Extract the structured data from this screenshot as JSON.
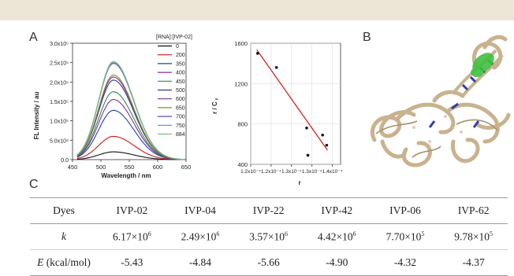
{
  "panels": {
    "a": "A",
    "b": "B",
    "c": "C"
  },
  "chart_data": [
    {
      "type": "line",
      "xlabel": "Wavelength / nm",
      "ylabel": "FL Intensity / au",
      "xlim": [
        450,
        650
      ],
      "ylim": [
        0,
        300000
      ],
      "x_ticks": [
        "450",
        "500",
        "550",
        "600",
        "650"
      ],
      "y_ticks": [
        "0.0",
        "5.0x10⁴",
        "1.0x10⁵",
        "1.5x10⁵",
        "2.0x10⁵",
        "2.5x10⁵",
        "3.0x10⁵"
      ],
      "legend_title": "[RNA]:[IVP-02]",
      "legend_position": "right",
      "peak_wavelength": 522,
      "series": [
        {
          "name": "0",
          "color": "#111111",
          "peak": 20000
        },
        {
          "name": "200",
          "color": "#d01717",
          "peak": 60000
        },
        {
          "name": "350",
          "color": "#1f3fb8",
          "peak": 127000
        },
        {
          "name": "400",
          "color": "#8a2f8a",
          "peak": 155000
        },
        {
          "name": "450",
          "color": "#2e8b57",
          "peak": 175000
        },
        {
          "name": "500",
          "color": "#2b3a8f",
          "peak": 205000
        },
        {
          "name": "600",
          "color": "#7b2f8f",
          "peak": 213000
        },
        {
          "name": "650",
          "color": "#8c8c2a",
          "peak": 218000
        },
        {
          "name": "700",
          "color": "#6a4aa8",
          "peak": 248000
        },
        {
          "name": "750",
          "color": "#5a8ac0",
          "peak": 250000
        },
        {
          "name": "884",
          "color": "#7fbf7f",
          "peak": 253000
        }
      ]
    },
    {
      "type": "scatter",
      "xlabel": "r",
      "ylabel": "r / Cf",
      "xlim": [
        0.00012,
        0.000142
      ],
      "ylim": [
        400,
        1600
      ],
      "x_ticks": [
        "1.2x10⁻⁴",
        "1.2x10⁻⁴",
        "1.3x10⁻⁴",
        "1.3x10⁻⁴",
        "1.4x10⁻⁴"
      ],
      "x_tick_values": [
        0.00012,
        0.000125,
        0.00013,
        0.000135,
        0.00014
      ],
      "y_ticks": [
        "400",
        "800",
        "1200",
        "1600"
      ],
      "grid": true,
      "points": [
        {
          "x": 0.0001217,
          "y": 1500
        },
        {
          "x": 0.0001263,
          "y": 1360
        },
        {
          "x": 0.0001337,
          "y": 760
        },
        {
          "x": 0.000134,
          "y": 490
        },
        {
          "x": 0.0001376,
          "y": 690
        },
        {
          "x": 0.0001386,
          "y": 590
        }
      ],
      "fit": {
        "x": [
          0.0001215,
          0.0001388
        ],
        "y": [
          1535,
          540
        ],
        "color": "#d42323"
      }
    }
  ],
  "table": {
    "header_label": "Dyes",
    "dyes": [
      "IVP-02",
      "IVP-04",
      "IVP-22",
      "IVP-42",
      "IVP-06",
      "IVP-62"
    ],
    "k_label": "k",
    "k_values": [
      {
        "mantissa": "6.17×10",
        "exp": "6"
      },
      {
        "mantissa": "2.49×10",
        "exp": "6"
      },
      {
        "mantissa": "3.57×10",
        "exp": "6"
      },
      {
        "mantissa": "4.42×10",
        "exp": "6"
      },
      {
        "mantissa": "7.70×10",
        "exp": "5"
      },
      {
        "mantissa": "9.78×10",
        "exp": "5"
      }
    ],
    "e_label_var": "E",
    "e_label_unit": " (kcal/mol)",
    "e_values": [
      "-5.43",
      "-4.84",
      "-5.66",
      "-4.90",
      "-4.32",
      "-4.37"
    ]
  }
}
